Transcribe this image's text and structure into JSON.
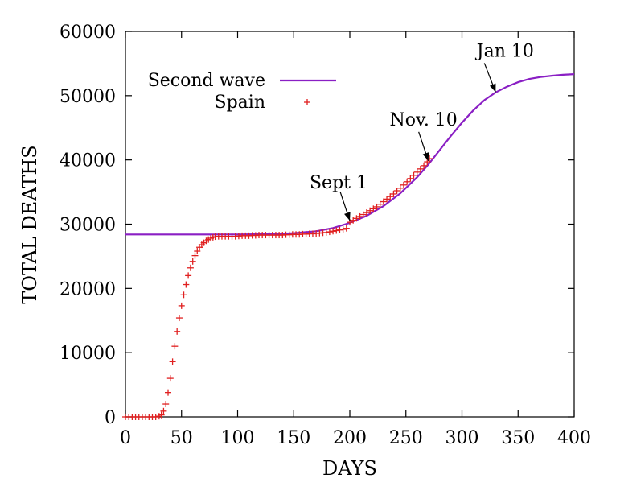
{
  "chart_data": {
    "type": "line",
    "title": "",
    "xlabel": "DAYS",
    "ylabel": "TOTAL DEATHS",
    "xlim": [
      0,
      400
    ],
    "ylim": [
      0,
      60000
    ],
    "xticks": [
      0,
      50,
      100,
      150,
      200,
      250,
      300,
      350,
      400
    ],
    "yticks": [
      0,
      10000,
      20000,
      30000,
      40000,
      50000,
      60000
    ],
    "grid": false,
    "legend_position": "top-left",
    "series": [
      {
        "name": "Second wave",
        "kind": "line",
        "color": "#8a1fc4",
        "x": [
          0,
          50,
          100,
          130,
          150,
          170,
          185,
          200,
          215,
          230,
          245,
          260,
          270,
          280,
          290,
          300,
          310,
          320,
          330,
          340,
          350,
          360,
          370,
          380,
          390,
          400
        ],
        "y": [
          28400,
          28400,
          28400,
          28450,
          28600,
          28900,
          29400,
          30200,
          31300,
          32800,
          34800,
          37300,
          39300,
          41500,
          43700,
          45800,
          47700,
          49300,
          50500,
          51400,
          52100,
          52600,
          52900,
          53100,
          53250,
          53350
        ]
      },
      {
        "name": "Spain",
        "kind": "scatter",
        "marker": "+",
        "color": "#e02020",
        "x": [
          0,
          3,
          6,
          9,
          12,
          15,
          18,
          21,
          24,
          27,
          30,
          32,
          34,
          36,
          38,
          40,
          42,
          44,
          46,
          48,
          50,
          52,
          54,
          56,
          58,
          60,
          62,
          64,
          66,
          68,
          70,
          72,
          74,
          76,
          78,
          80,
          83,
          86,
          89,
          92,
          95,
          98,
          101,
          104,
          107,
          110,
          113,
          116,
          119,
          122,
          125,
          128,
          131,
          134,
          137,
          140,
          143,
          146,
          149,
          152,
          155,
          158,
          161,
          164,
          167,
          170,
          173,
          176,
          179,
          182,
          185,
          188,
          191,
          194,
          197,
          200,
          203,
          206,
          209,
          212,
          215,
          218,
          221,
          224,
          227,
          230,
          233,
          236,
          239,
          242,
          245,
          248,
          251,
          254,
          257,
          260,
          263,
          266,
          269,
          271
        ],
        "y": [
          0,
          0,
          0,
          0,
          0,
          0,
          0,
          0,
          0,
          0,
          100,
          300,
          900,
          2000,
          3800,
          6000,
          8600,
          11000,
          13300,
          15400,
          17300,
          19000,
          20600,
          22000,
          23200,
          24200,
          25100,
          25800,
          26400,
          26800,
          27100,
          27400,
          27600,
          27800,
          27950,
          28050,
          28100,
          28100,
          28100,
          28100,
          28100,
          28100,
          28150,
          28200,
          28200,
          28200,
          28250,
          28250,
          28300,
          28300,
          28300,
          28300,
          28300,
          28300,
          28300,
          28300,
          28350,
          28350,
          28400,
          28400,
          28400,
          28450,
          28450,
          28500,
          28500,
          28550,
          28600,
          28650,
          28700,
          28800,
          28900,
          29000,
          29100,
          29200,
          29350,
          30300,
          30600,
          30900,
          31200,
          31500,
          31800,
          32100,
          32400,
          32700,
          33100,
          33500,
          33900,
          34300,
          34700,
          35200,
          35600,
          36100,
          36600,
          37100,
          37600,
          38100,
          38600,
          39100,
          39700,
          40200
        ]
      }
    ],
    "annotations": [
      {
        "text": "Sept 1",
        "x": 200,
        "y": 30300
      },
      {
        "text": "Nov. 10",
        "x": 270,
        "y": 39600
      },
      {
        "text": "Jan 10",
        "x": 330,
        "y": 50300
      }
    ]
  }
}
